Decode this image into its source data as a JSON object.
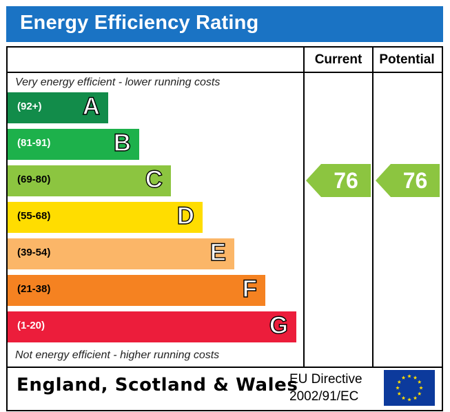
{
  "title": "Energy Efficiency Rating",
  "columns": {
    "current": "Current",
    "potential": "Potential"
  },
  "notes": {
    "top": "Very energy efficient - lower running costs",
    "bottom": "Not energy efficient - higher running costs"
  },
  "chart_data": {
    "type": "bar",
    "title": "Energy Efficiency Rating",
    "categories": [
      "A",
      "B",
      "C",
      "D",
      "E",
      "F",
      "G"
    ],
    "bands": [
      {
        "letter": "A",
        "range": "(92+)",
        "min": 92,
        "max": 100,
        "color": "#128c4a"
      },
      {
        "letter": "B",
        "range": "(81-91)",
        "min": 81,
        "max": 91,
        "color": "#1db14b"
      },
      {
        "letter": "C",
        "range": "(69-80)",
        "min": 69,
        "max": 80,
        "color": "#8cc540"
      },
      {
        "letter": "D",
        "range": "(55-68)",
        "min": 55,
        "max": 68,
        "color": "#ffdd00"
      },
      {
        "letter": "E",
        "range": "(39-54)",
        "min": 39,
        "max": 54,
        "color": "#fbb668"
      },
      {
        "letter": "F",
        "range": "(21-38)",
        "min": 21,
        "max": 38,
        "color": "#f58221"
      },
      {
        "letter": "G",
        "range": "(1-20)",
        "min": 1,
        "max": 20,
        "color": "#ec1d3b"
      }
    ],
    "current": 76,
    "potential": 76,
    "arrow_color": "#8cc540"
  },
  "footer": {
    "country": "England, Scotland & Wales",
    "directive_line1": "EU Directive",
    "directive_line2": "2002/91/EC",
    "flag_icon": "eu-flag-icon"
  }
}
